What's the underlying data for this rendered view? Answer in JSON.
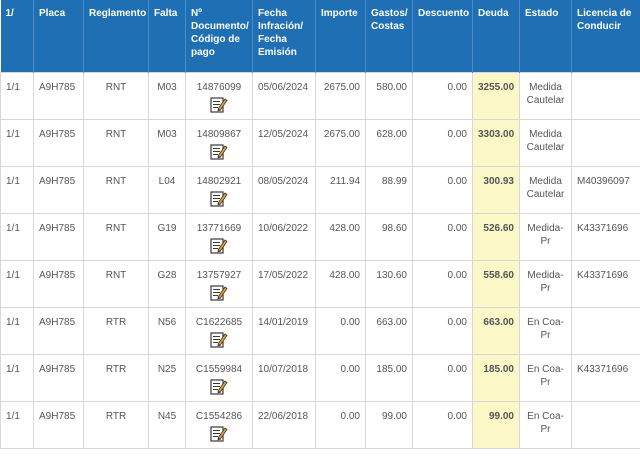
{
  "headers": {
    "col1": "1/",
    "placa": "Placa",
    "reglamento": "Reglamento",
    "falta": "Falta",
    "documento": "Nº Documento/ Código de pago",
    "fecha": "Fecha Infración/ Fecha Emisión",
    "importe": "Importe",
    "gastos": "Gastos/ Costas",
    "descuento": "Descuento",
    "deuda": "Deuda",
    "estado": "Estado",
    "licencia": "Licencia de Conducir"
  },
  "rows": [
    {
      "n": "1/1",
      "placa": "A9H785",
      "reglamento": "RNT",
      "falta": "M03",
      "documento": "14876099",
      "fecha": "05/06/2024",
      "importe": "2675.00",
      "gastos": "580.00",
      "descuento": "0.00",
      "deuda": "3255.00",
      "estado": "Medida Cautelar",
      "licencia": ""
    },
    {
      "n": "1/1",
      "placa": "A9H785",
      "reglamento": "RNT",
      "falta": "M03",
      "documento": "14809867",
      "fecha": "12/05/2024",
      "importe": "2675.00",
      "gastos": "628.00",
      "descuento": "0.00",
      "deuda": "3303.00",
      "estado": "Medida Cautelar",
      "licencia": ""
    },
    {
      "n": "1/1",
      "placa": "A9H785",
      "reglamento": "RNT",
      "falta": "L04",
      "documento": "14802921",
      "fecha": "08/05/2024",
      "importe": "211.94",
      "gastos": "88.99",
      "descuento": "0.00",
      "deuda": "300.93",
      "estado": "Medida Cautelar",
      "licencia": "M40396097"
    },
    {
      "n": "1/1",
      "placa": "A9H785",
      "reglamento": "RNT",
      "falta": "G19",
      "documento": "13771669",
      "fecha": "10/06/2022",
      "importe": "428.00",
      "gastos": "98.60",
      "descuento": "0.00",
      "deuda": "526.60",
      "estado": "Medida-Pr",
      "licencia": "K43371696"
    },
    {
      "n": "1/1",
      "placa": "A9H785",
      "reglamento": "RNT",
      "falta": "G28",
      "documento": "13757927",
      "fecha": "17/05/2022",
      "importe": "428.00",
      "gastos": "130.60",
      "descuento": "0.00",
      "deuda": "558.60",
      "estado": "Medida-Pr",
      "licencia": "K43371696"
    },
    {
      "n": "1/1",
      "placa": "A9H785",
      "reglamento": "RTR",
      "falta": "N56",
      "documento": "C1622685",
      "fecha": "14/01/2019",
      "importe": "0.00",
      "gastos": "663.00",
      "descuento": "0.00",
      "deuda": "663.00",
      "estado": "En Coa-Pr",
      "licencia": ""
    },
    {
      "n": "1/1",
      "placa": "A9H785",
      "reglamento": "RTR",
      "falta": "N25",
      "documento": "C1559984",
      "fecha": "10/07/2018",
      "importe": "0.00",
      "gastos": "185.00",
      "descuento": "0.00",
      "deuda": "185.00",
      "estado": "En Coa-Pr",
      "licencia": "K43371696"
    },
    {
      "n": "1/1",
      "placa": "A9H785",
      "reglamento": "RTR",
      "falta": "N45",
      "documento": "C1554286",
      "fecha": "22/06/2018",
      "importe": "0.00",
      "gastos": "99.00",
      "descuento": "0.00",
      "deuda": "99.00",
      "estado": "En Coa-Pr",
      "licencia": ""
    }
  ],
  "colors": {
    "header_bg": "#1f6fb5",
    "deuda_bg": "#fbf7c7",
    "icon_accent": "#e8a020"
  },
  "icons": {
    "edit": "edit-document-icon"
  }
}
